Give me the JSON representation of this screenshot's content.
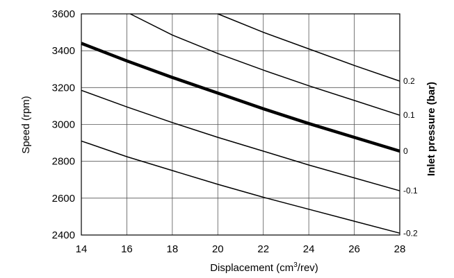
{
  "chart_data": {
    "type": "line",
    "xlabel": "Displacement (cm",
    "xlabel_sup": "3",
    "xlabel_tail": "/rev)",
    "ylabel": "Speed (rpm)",
    "y2label": "Inlet pressure (bar)",
    "xlim": [
      14,
      28
    ],
    "ylim": [
      2400,
      3600
    ],
    "x_ticks": [
      "14",
      "16",
      "18",
      "20",
      "22",
      "24",
      "26",
      "28"
    ],
    "y_ticks": [
      "2400",
      "2600",
      "2800",
      "3000",
      "3200",
      "3400",
      "3600"
    ],
    "grid": true,
    "series": [
      {
        "name": "-0.2",
        "bold": false,
        "x": [
          14,
          16,
          18,
          20,
          22,
          24,
          26,
          28
        ],
        "y": [
          2910,
          2825,
          2750,
          2675,
          2605,
          2540,
          2475,
          2410
        ]
      },
      {
        "name": "-0.1",
        "bold": false,
        "x": [
          14,
          16,
          18,
          20,
          22,
          24,
          26,
          28
        ],
        "y": [
          3185,
          3095,
          3010,
          2930,
          2855,
          2780,
          2710,
          2640
        ]
      },
      {
        "name": "0",
        "bold": true,
        "x": [
          14,
          16,
          18,
          20,
          22,
          24,
          26,
          28
        ],
        "y": [
          3440,
          3345,
          3255,
          3170,
          3085,
          3005,
          2930,
          2855
        ]
      },
      {
        "name": "0.1",
        "bold": false,
        "x": [
          16.15,
          18,
          20,
          22,
          24,
          26,
          28
        ],
        "y": [
          3600,
          3485,
          3385,
          3295,
          3210,
          3130,
          3050
        ]
      },
      {
        "name": "0.2",
        "bold": false,
        "x": [
          20,
          22,
          24,
          26,
          28
        ],
        "y": [
          3600,
          3500,
          3410,
          3320,
          3235
        ]
      }
    ],
    "right_labels": [
      "0.2",
      "0.1",
      "0",
      "-0.1",
      "-0.2"
    ]
  }
}
